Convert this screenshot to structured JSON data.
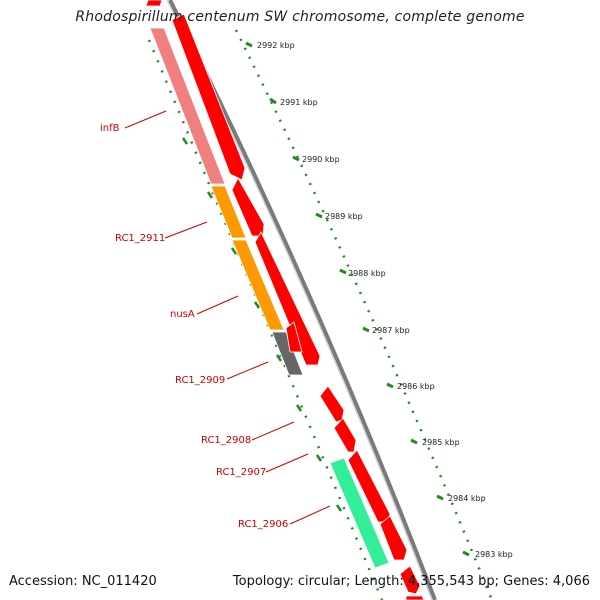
{
  "title": "Rhodospirillum centenum SW chromosome, complete genome",
  "footer": {
    "accession": "Accession: NC_011420",
    "summary": "Topology: circular; Length: 4,355,543 bp; Genes: 4,066"
  },
  "ruler_labels": [
    "2992 kbp",
    "2991 kbp",
    "2990 kbp",
    "2989 kbp",
    "2988 kbp",
    "2987 kbp",
    "2986 kbp",
    "2985 kbp",
    "2984 kbp",
    "2983 kbp"
  ],
  "gene_labels": [
    "infB",
    "RC1_2911",
    "nusA",
    "RC1_2909",
    "RC1_2908",
    "RC1_2907",
    "RC1_2906"
  ],
  "colors": {
    "forward_gene": "#ff0000",
    "infB": "#f08080",
    "RC1_2911": "#ff9900",
    "nusA": "#ff9900",
    "RC1_2909": "#666666",
    "RC1_2906": "#33ee99",
    "label": "#cc0000",
    "tick": "#228b22",
    "backbone": "#888888"
  }
}
